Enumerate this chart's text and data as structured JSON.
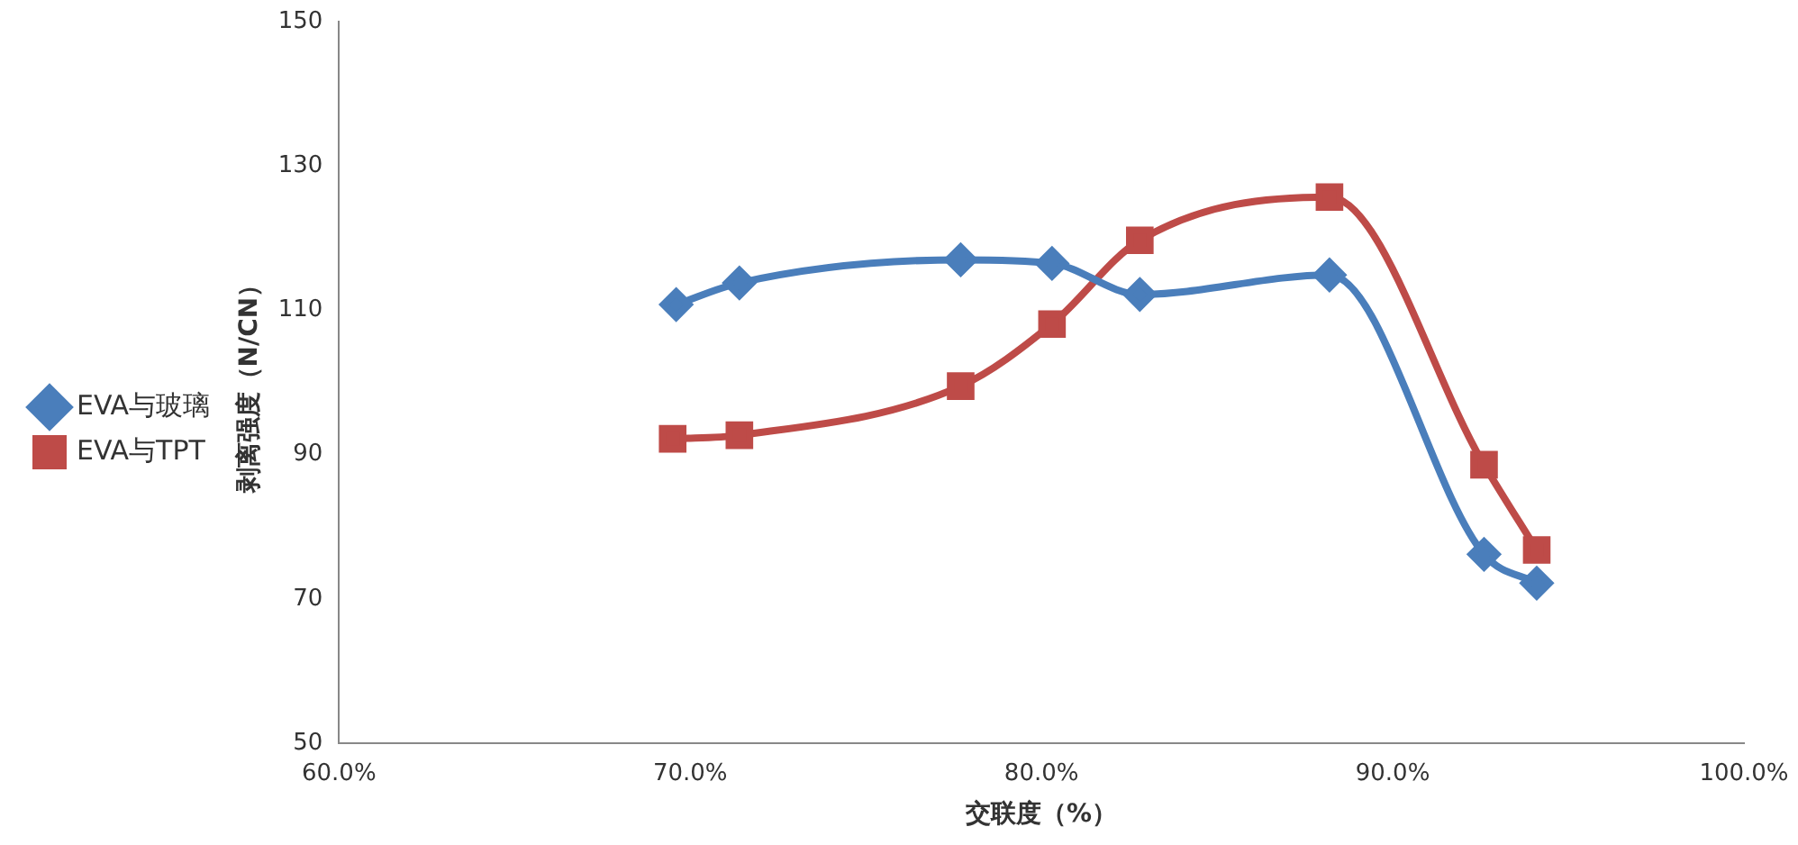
{
  "chart_data": {
    "type": "line",
    "xlabel": "交联度（%）",
    "ylabel": "剥离强度（N/CN）",
    "xlim": [
      60,
      100
    ],
    "xticks": [
      {
        "value": 60,
        "label": "60.0%"
      },
      {
        "value": 70,
        "label": "70.0%"
      },
      {
        "value": 80,
        "label": "80.0%"
      },
      {
        "value": 90,
        "label": "90.0%"
      },
      {
        "value": 100,
        "label": "100.0%"
      }
    ],
    "ylim": [
      50,
      150
    ],
    "yticks": [
      50,
      70,
      90,
      110,
      130,
      150
    ],
    "grid": false,
    "legend": "left",
    "series": [
      {
        "name": "EVA与玻璃",
        "color": "#4a7ebb",
        "marker": "diamond",
        "x": [
          69.6,
          71.4,
          77.7,
          80.3,
          82.8,
          88.2,
          92.6,
          94.1
        ],
        "values": [
          110.8,
          113.8,
          117,
          116.5,
          112.2,
          114.9,
          76.2,
          72.2
        ]
      },
      {
        "name": "EVA与TPT",
        "color": "#be4b48",
        "marker": "square",
        "x": [
          69.5,
          71.4,
          77.7,
          80.3,
          82.8,
          88.2,
          92.6,
          94.1
        ],
        "values": [
          92.2,
          92.7,
          99.5,
          108.1,
          119.7,
          125.7,
          88.6,
          76.8
        ]
      }
    ]
  }
}
